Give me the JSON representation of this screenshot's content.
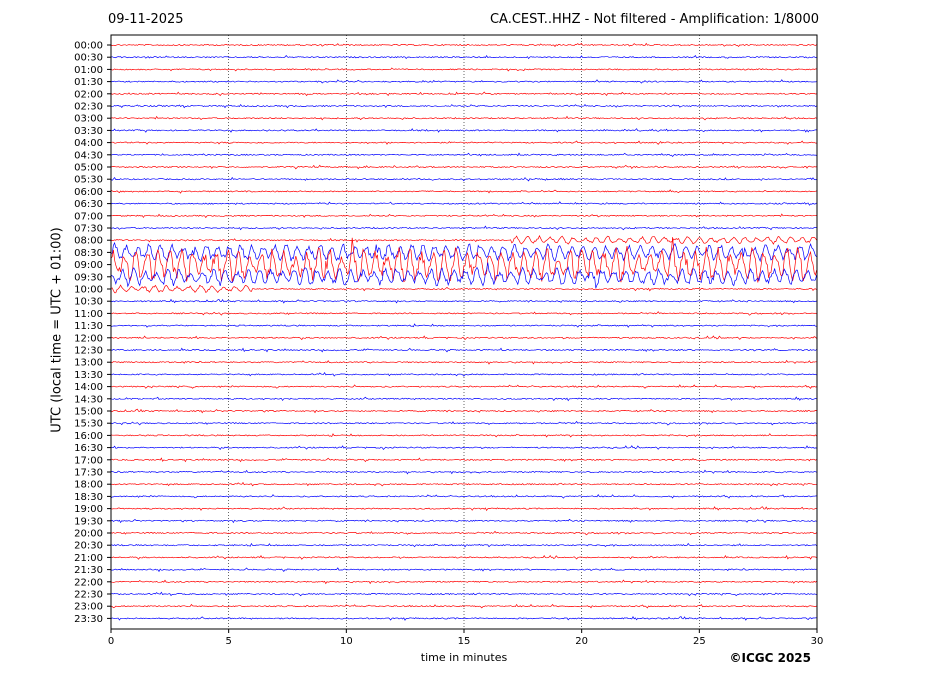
{
  "header": {
    "date": "09-11-2025",
    "title": "CA.CEST..HHZ - Not filtered - Amplification: 1/8000"
  },
  "footer": {
    "copyright": "©ICGC 2025"
  },
  "colors": {
    "trace_even": "#ff0000",
    "trace_odd": "#0000ff",
    "grid": "#000000",
    "axis": "#000000"
  },
  "chart_data": {
    "type": "line",
    "title": "CA.CEST..HHZ - Not filtered - Amplification: 1/8000",
    "xlabel": "time in minutes",
    "ylabel": "UTC (local time = UTC + 01:00)",
    "xlim": [
      0,
      30
    ],
    "xticks": [
      "0",
      "5",
      "10",
      "15",
      "20",
      "25",
      "30"
    ],
    "grid": "vertical dotted lines at each x tick",
    "rows": [
      "00:00",
      "00:30",
      "01:00",
      "01:30",
      "02:00",
      "02:30",
      "03:00",
      "03:30",
      "04:00",
      "04:30",
      "05:00",
      "05:30",
      "06:00",
      "06:30",
      "07:00",
      "07:30",
      "08:00",
      "08:30",
      "09:00",
      "09:30",
      "10:00",
      "10:30",
      "11:00",
      "11:30",
      "12:00",
      "12:30",
      "13:00",
      "13:30",
      "14:00",
      "14:30",
      "15:00",
      "15:30",
      "16:00",
      "16:30",
      "17:00",
      "17:30",
      "18:00",
      "18:30",
      "19:00",
      "19:30",
      "20:00",
      "20:30",
      "21:00",
      "21:30",
      "22:00",
      "22:30",
      "23:00",
      "23:30"
    ],
    "row_colors": "alternating red / blue",
    "events": [
      {
        "row": "08:00",
        "x_start": 17,
        "x_end": 30,
        "amplitude": "moderate"
      },
      {
        "row": "08:30",
        "x_start": 0,
        "x_end": 30,
        "amplitude": "strong"
      },
      {
        "row": "09:00",
        "x_start": 0,
        "x_end": 30,
        "amplitude": "very strong"
      },
      {
        "row": "09:30",
        "x_start": 0,
        "x_end": 30,
        "amplitude": "strong"
      },
      {
        "row": "10:00",
        "x_start": 0,
        "x_end": 6,
        "amplitude": "moderate"
      }
    ]
  }
}
